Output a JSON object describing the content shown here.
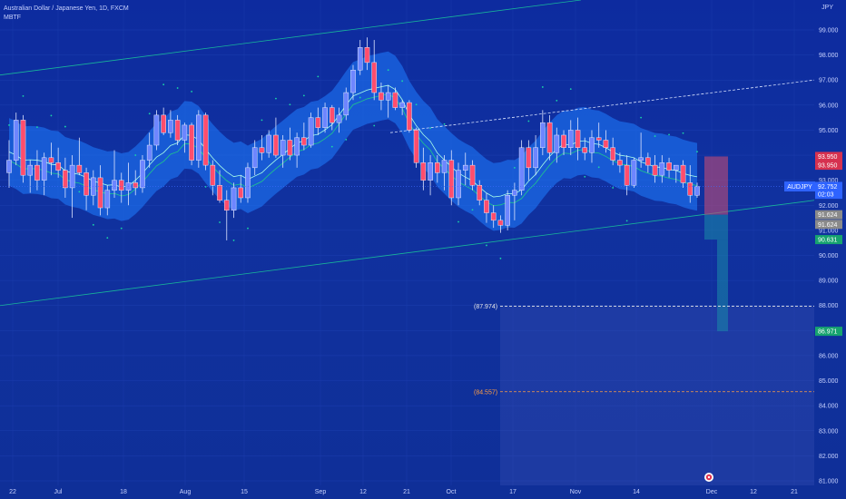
{
  "header": {
    "title": "Australian Dollar / Japanese Yen, 1D, FXCM",
    "indicator": "MBTF",
    "currency": "JPY"
  },
  "colors": {
    "background": "#0f2d9a",
    "bullish": "#6e86ff",
    "bearish": "#ff4d6d",
    "band": "#1e7bff",
    "channel": "#18b49a",
    "sar": "#1ad5a8"
  },
  "chart_data": {
    "type": "candlestick",
    "y_ticks": [
      "99.000",
      "98.000",
      "97.000",
      "96.000",
      "95.000",
      "94.000",
      "93.000",
      "92.000",
      "91.000",
      "90.000",
      "89.000",
      "88.000",
      "87.000",
      "86.000",
      "85.000",
      "84.000",
      "83.000",
      "82.000",
      "81.000"
    ],
    "x_ticks": [
      "22",
      "Jul",
      "18",
      "Aug",
      "15",
      "Sep",
      "12",
      "21",
      "Oct",
      "17",
      "Nov",
      "14",
      "Dec",
      "12",
      "21"
    ],
    "ylim": [
      80.6,
      99.35
    ],
    "price_flags": [
      {
        "label": "93.950",
        "value": 93.95,
        "color": "#d6314f"
      },
      {
        "label": "93.950",
        "value": 93.6,
        "color": "#d6314f"
      },
      {
        "label": "AUDJPY",
        "value": 92.752,
        "color": "#2e63ff",
        "is_symbol": true
      },
      {
        "label": "92.752",
        "value": 92.752,
        "color": "#2e63ff"
      },
      {
        "label": "02:03",
        "value": 92.44,
        "color": "#2e63ff"
      },
      {
        "label": "91.624",
        "value": 91.624,
        "color": "#8a8a8a"
      },
      {
        "label": "91.624",
        "value": 91.24,
        "color": "#8a8a8a"
      },
      {
        "label": "90.631",
        "value": 90.631,
        "color": "#16a36f"
      },
      {
        "label": "86.971",
        "value": 86.971,
        "color": "#16a36f"
      }
    ],
    "levels": [
      {
        "label": "(87.974)",
        "value": 87.974,
        "color": "#e8e8e8"
      },
      {
        "label": "(84.557)",
        "value": 84.557,
        "color": "#ff9f43"
      }
    ],
    "last_close": 92.752,
    "candles": [
      [
        93.3,
        94.6,
        92.7,
        93.8
      ],
      [
        93.8,
        95.7,
        93.6,
        95.4
      ],
      [
        95.4,
        95.6,
        92.9,
        93.2
      ],
      [
        93.2,
        93.8,
        92.5,
        93.6
      ],
      [
        93.6,
        94.2,
        92.6,
        93.0
      ],
      [
        93.0,
        94.1,
        92.4,
        93.9
      ],
      [
        93.9,
        94.5,
        93.2,
        93.7
      ],
      [
        93.7,
        94.3,
        93.1,
        93.4
      ],
      [
        93.4,
        93.9,
        92.3,
        92.7
      ],
      [
        92.7,
        94.0,
        91.5,
        93.6
      ],
      [
        93.6,
        94.7,
        93.2,
        93.3
      ],
      [
        93.3,
        93.5,
        91.8,
        92.4
      ],
      [
        92.4,
        93.4,
        92.0,
        93.1
      ],
      [
        93.1,
        93.6,
        91.6,
        91.9
      ],
      [
        91.9,
        92.8,
        91.6,
        92.6
      ],
      [
        92.6,
        94.2,
        92.3,
        93.0
      ],
      [
        93.0,
        93.3,
        92.1,
        92.6
      ],
      [
        92.6,
        93.7,
        92.0,
        92.9
      ],
      [
        92.9,
        93.4,
        92.4,
        92.7
      ],
      [
        92.7,
        94.0,
        92.5,
        93.8
      ],
      [
        93.8,
        94.9,
        93.5,
        94.4
      ],
      [
        94.4,
        95.8,
        94.2,
        95.6
      ],
      [
        95.6,
        95.9,
        94.8,
        94.9
      ],
      [
        94.9,
        95.8,
        94.7,
        95.4
      ],
      [
        95.4,
        95.6,
        94.4,
        94.6
      ],
      [
        94.6,
        95.3,
        94.1,
        95.2
      ],
      [
        95.2,
        95.3,
        93.6,
        93.8
      ],
      [
        93.8,
        95.8,
        93.5,
        95.6
      ],
      [
        95.6,
        95.7,
        93.4,
        93.6
      ],
      [
        93.6,
        93.8,
        92.4,
        92.8
      ],
      [
        92.8,
        93.4,
        92.1,
        92.2
      ],
      [
        92.2,
        92.6,
        90.6,
        91.8
      ],
      [
        91.8,
        92.9,
        91.5,
        92.7
      ],
      [
        92.7,
        93.2,
        92.1,
        92.3
      ],
      [
        92.3,
        93.7,
        92.1,
        93.5
      ],
      [
        93.5,
        94.6,
        93.2,
        94.3
      ],
      [
        94.3,
        94.8,
        93.8,
        94.1
      ],
      [
        94.1,
        95.0,
        93.9,
        94.8
      ],
      [
        94.8,
        95.5,
        93.9,
        94.0
      ],
      [
        94.0,
        94.8,
        93.5,
        94.6
      ],
      [
        94.6,
        95.1,
        93.8,
        94.0
      ],
      [
        94.0,
        94.9,
        93.5,
        94.7
      ],
      [
        94.7,
        95.3,
        94.2,
        94.4
      ],
      [
        94.4,
        95.7,
        94.3,
        95.5
      ],
      [
        95.5,
        95.9,
        94.8,
        95.1
      ],
      [
        95.1,
        96.1,
        94.9,
        95.9
      ],
      [
        95.9,
        96.0,
        95.0,
        95.3
      ],
      [
        95.3,
        95.9,
        94.9,
        95.6
      ],
      [
        95.6,
        96.7,
        95.4,
        96.5
      ],
      [
        96.5,
        97.6,
        96.2,
        97.4
      ],
      [
        97.4,
        98.6,
        97.2,
        98.3
      ],
      [
        98.3,
        98.7,
        97.4,
        97.7
      ],
      [
        97.7,
        98.6,
        96.2,
        96.5
      ],
      [
        96.5,
        96.9,
        95.8,
        96.2
      ],
      [
        96.2,
        96.8,
        95.5,
        96.5
      ],
      [
        96.5,
        96.7,
        95.8,
        95.9
      ],
      [
        95.9,
        96.2,
        95.6,
        96.1
      ],
      [
        96.1,
        96.2,
        94.9,
        95.0
      ],
      [
        95.0,
        95.1,
        93.5,
        93.7
      ],
      [
        93.7,
        94.3,
        92.6,
        93.0
      ],
      [
        93.0,
        94.0,
        92.4,
        93.7
      ],
      [
        93.7,
        94.0,
        92.9,
        93.3
      ],
      [
        93.3,
        94.0,
        92.6,
        93.8
      ],
      [
        93.8,
        94.2,
        92.0,
        92.3
      ],
      [
        92.3,
        93.7,
        92.0,
        93.4
      ],
      [
        93.4,
        94.1,
        92.8,
        93.6
      ],
      [
        93.6,
        93.8,
        92.6,
        92.8
      ],
      [
        92.8,
        93.0,
        92.0,
        92.2
      ],
      [
        92.2,
        92.5,
        91.3,
        91.7
      ],
      [
        91.7,
        92.0,
        91.1,
        91.4
      ],
      [
        91.4,
        91.6,
        90.9,
        91.2
      ],
      [
        91.2,
        92.6,
        91.0,
        92.4
      ],
      [
        92.4,
        92.9,
        91.4,
        92.6
      ],
      [
        92.6,
        94.6,
        92.4,
        94.3
      ],
      [
        94.3,
        94.6,
        93.0,
        93.5
      ],
      [
        93.5,
        94.8,
        93.2,
        94.3
      ],
      [
        94.3,
        95.8,
        94.0,
        95.3
      ],
      [
        95.3,
        95.6,
        93.8,
        94.1
      ],
      [
        94.1,
        95.1,
        93.7,
        94.8
      ],
      [
        94.8,
        95.0,
        94.0,
        94.3
      ],
      [
        94.3,
        95.4,
        94.0,
        95.0
      ],
      [
        95.0,
        95.5,
        93.8,
        94.3
      ],
      [
        94.3,
        94.7,
        93.8,
        94.1
      ],
      [
        94.1,
        95.0,
        93.7,
        94.7
      ],
      [
        94.7,
        95.3,
        94.3,
        94.6
      ],
      [
        94.6,
        95.0,
        94.1,
        94.3
      ],
      [
        94.3,
        94.7,
        93.6,
        93.8
      ],
      [
        93.8,
        94.1,
        93.3,
        93.6
      ],
      [
        93.6,
        94.0,
        92.4,
        92.8
      ],
      [
        92.8,
        93.9,
        92.7,
        93.8
      ],
      [
        93.8,
        94.9,
        93.5,
        93.9
      ],
      [
        93.9,
        94.1,
        93.3,
        93.6
      ],
      [
        93.6,
        94.0,
        92.9,
        93.2
      ],
      [
        93.2,
        94.0,
        92.9,
        93.7
      ],
      [
        93.7,
        93.9,
        93.1,
        93.4
      ],
      [
        93.4,
        93.6,
        92.9,
        93.6
      ],
      [
        93.6,
        93.8,
        92.7,
        92.9
      ],
      [
        92.9,
        93.6,
        92.1,
        92.4
      ],
      [
        92.4,
        92.9,
        92.3,
        92.75
      ]
    ]
  }
}
